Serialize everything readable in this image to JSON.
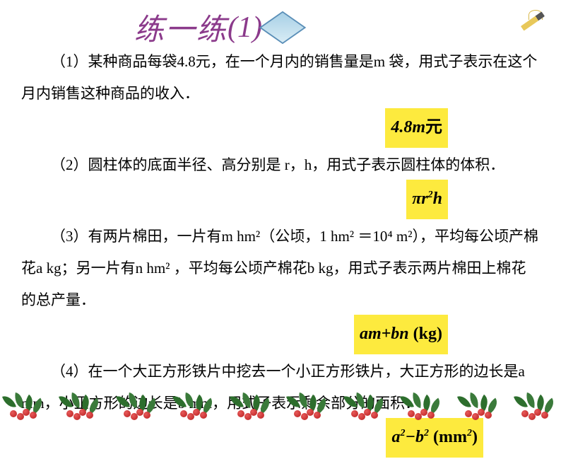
{
  "title": {
    "text": "练一练",
    "num": "(1)"
  },
  "problems": {
    "p1": {
      "text": "（1）某种商品每袋4.8元，在一个月内的销售量是m 袋，用式子表示在这个月内销售这种商品的收入．",
      "answer_html": "4.8<span class='em-var'>m</span><span class='upright'>元</span>"
    },
    "p2": {
      "text": "（2）圆柱体的底面半径、高分别是 r，h，用式子表示圆柱体的体积．",
      "answer_html": "π<span class='em-var'>r</span><sup>2</sup><span class='em-var'>h</span>"
    },
    "p3": {
      "text": "（3）有两片棉田，一片有m hm²（公顷，1 hm² ＝10⁴ m²），平均每公顷产棉花a kg；另一片有n hm² ，平均每公顷产棉花b kg，用式子表示两片棉田上棉花的总产量．",
      "answer_html": "<span class='em-var'>am</span>+<span class='em-var'>bn</span> <span class='upright'>(kg)</span>"
    },
    "p4": {
      "text": "（4）在一个大正方形铁片中挖去一个小正方形铁片，大正方形的边长是a mm，小正方形的边长是b mm，用式子表示剩余部分的面积．",
      "answer_html": "<span class='em-var'>a</span><sup>2</sup>−<span class='em-var'>b</span><sup>2</sup> <span class='upright'>(mm<sup>2</sup>)</span>"
    }
  },
  "styles": {
    "highlight_bg": "#fdea3e",
    "title_color": "#8b3a8b",
    "leaf_color": "#2d6e2d",
    "berry_color": "#b81e1e",
    "body_bg": "#ffffff",
    "text_color": "#000000",
    "font_size_body": 21,
    "font_size_title": 42,
    "font_size_answer": 24
  }
}
